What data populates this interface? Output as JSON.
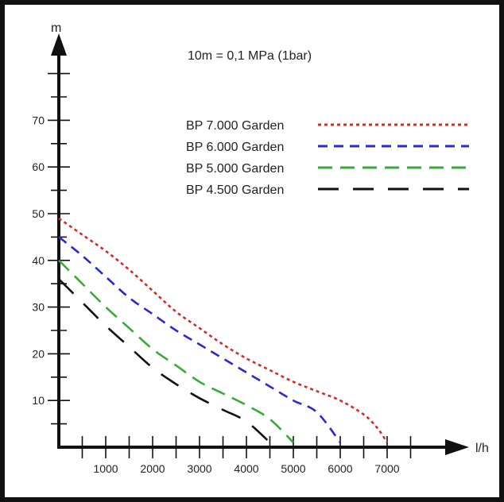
{
  "chart_data": {
    "type": "line",
    "note": "10m = 0,1 MPa (1bar)",
    "xlabel": "l/h",
    "ylabel": "m",
    "xlim": [
      0,
      7500
    ],
    "ylim": [
      0,
      80
    ],
    "x_ticks": [
      "1000",
      "2000",
      "3000",
      "4000",
      "5000",
      "6000",
      "7000"
    ],
    "y_ticks": [
      "10",
      "20",
      "30",
      "40",
      "50",
      "60",
      "70"
    ],
    "legend_position": "top-right",
    "grid": false,
    "series": [
      {
        "name": "BP 7.000 Garden",
        "color": "#d42a2a",
        "dash": "dotted",
        "points": [
          [
            0,
            49
          ],
          [
            500,
            45.5
          ],
          [
            1000,
            42
          ],
          [
            1500,
            38
          ],
          [
            2000,
            33.5
          ],
          [
            2500,
            29
          ],
          [
            3000,
            25.5
          ],
          [
            3500,
            22
          ],
          [
            4000,
            19
          ],
          [
            4500,
            16.5
          ],
          [
            5000,
            14
          ],
          [
            5500,
            12
          ],
          [
            6000,
            10
          ],
          [
            6500,
            7
          ],
          [
            6800,
            4
          ],
          [
            7000,
            1
          ]
        ]
      },
      {
        "name": "BP 6.000 Garden",
        "color": "#2a2acd",
        "dash": "short",
        "points": [
          [
            0,
            45
          ],
          [
            500,
            41
          ],
          [
            1000,
            36.5
          ],
          [
            1500,
            32
          ],
          [
            2000,
            28.5
          ],
          [
            2500,
            25
          ],
          [
            3000,
            22
          ],
          [
            3500,
            19
          ],
          [
            4000,
            16
          ],
          [
            4500,
            13
          ],
          [
            5000,
            10
          ],
          [
            5500,
            7.5
          ],
          [
            6000,
            1
          ]
        ]
      },
      {
        "name": "BP 5.000 Garden",
        "color": "#3aa83a",
        "dash": "medium",
        "points": [
          [
            0,
            40
          ],
          [
            500,
            35
          ],
          [
            1000,
            30
          ],
          [
            1500,
            25.5
          ],
          [
            2000,
            21
          ],
          [
            2500,
            17.5
          ],
          [
            3000,
            14
          ],
          [
            3500,
            11.5
          ],
          [
            4000,
            9
          ],
          [
            4500,
            6
          ],
          [
            5000,
            1
          ]
        ]
      },
      {
        "name": "BP 4.500 Garden",
        "color": "#111111",
        "dash": "long",
        "points": [
          [
            0,
            36
          ],
          [
            500,
            31
          ],
          [
            1000,
            26
          ],
          [
            1500,
            21.5
          ],
          [
            2000,
            17
          ],
          [
            2500,
            13.5
          ],
          [
            3000,
            10.5
          ],
          [
            3500,
            8
          ],
          [
            4000,
            5.5
          ],
          [
            4500,
            1
          ]
        ]
      }
    ]
  }
}
